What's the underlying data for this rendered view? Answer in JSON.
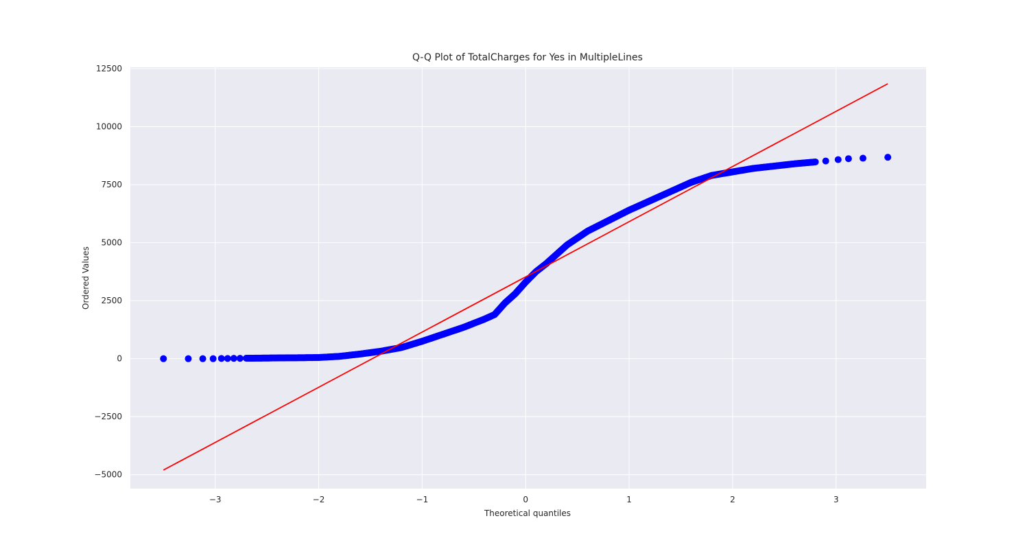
{
  "chart_data": {
    "type": "scatter",
    "title": "Q-Q Plot of TotalCharges for Yes in MultipleLines",
    "xlabel": "Theoretical quantiles",
    "ylabel": "Ordered Values",
    "xlim": [
      -3.82,
      3.87
    ],
    "ylim": [
      -5600,
      12560
    ],
    "x_ticks": [
      -3,
      -2,
      -1,
      0,
      1,
      2,
      3
    ],
    "y_ticks": [
      -5000,
      -2500,
      0,
      2500,
      5000,
      7500,
      10000,
      12500
    ],
    "grid": true,
    "colors": {
      "background": "#eaeaf2",
      "grid": "#ffffff",
      "points": "#0000ff",
      "fit_line": "#ff0000"
    },
    "series": [
      {
        "type": "scatter",
        "points": [
          [
            -3.5,
            0
          ],
          [
            -3.26,
            0
          ],
          [
            -3.12,
            0
          ],
          [
            -3.02,
            0
          ],
          [
            -2.94,
            10
          ],
          [
            -2.88,
            10
          ],
          [
            -2.82,
            15
          ],
          [
            -2.76,
            15
          ],
          [
            -2.7,
            20
          ],
          [
            -2.64,
            20
          ],
          [
            -2.55,
            25
          ],
          [
            -2.45,
            30
          ],
          [
            -2.35,
            35
          ],
          [
            -2.2,
            40
          ],
          [
            -2.0,
            50
          ],
          [
            -1.8,
            100
          ],
          [
            -1.6,
            200
          ],
          [
            -1.4,
            320
          ],
          [
            -1.2,
            480
          ],
          [
            -1.0,
            750
          ],
          [
            -0.8,
            1050
          ],
          [
            -0.6,
            1350
          ],
          [
            -0.4,
            1700
          ],
          [
            -0.3,
            1900
          ],
          [
            -0.2,
            2400
          ],
          [
            -0.1,
            2800
          ],
          [
            0.0,
            3300
          ],
          [
            0.1,
            3750
          ],
          [
            0.2,
            4100
          ],
          [
            0.3,
            4500
          ],
          [
            0.4,
            4900
          ],
          [
            0.6,
            5500
          ],
          [
            0.8,
            5950
          ],
          [
            1.0,
            6400
          ],
          [
            1.2,
            6800
          ],
          [
            1.4,
            7200
          ],
          [
            1.6,
            7600
          ],
          [
            1.8,
            7900
          ],
          [
            2.0,
            8050
          ],
          [
            2.2,
            8200
          ],
          [
            2.4,
            8300
          ],
          [
            2.6,
            8400
          ],
          [
            2.8,
            8480
          ],
          [
            2.9,
            8520
          ],
          [
            3.02,
            8580
          ],
          [
            3.12,
            8620
          ],
          [
            3.26,
            8640
          ],
          [
            3.5,
            8680
          ]
        ]
      },
      {
        "type": "line",
        "points": [
          [
            -3.5,
            -4800
          ],
          [
            3.5,
            11850
          ]
        ]
      }
    ]
  }
}
